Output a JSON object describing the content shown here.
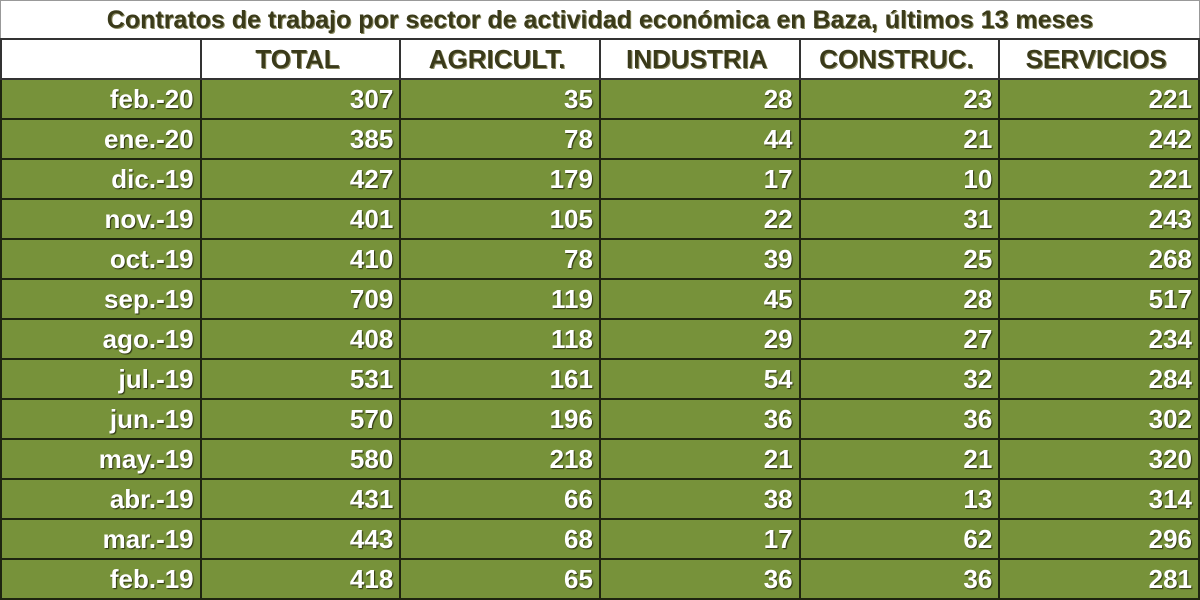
{
  "chart_data": {
    "type": "table",
    "title": "Contratos de trabajo por sector de actividad económica en Baza, últimos 13 meses",
    "columns": [
      "",
      "TOTAL",
      "AGRICULT.",
      "INDUSTRIA",
      "CONSTRUC.",
      "SERVICIOS"
    ],
    "rows": [
      {
        "label": "feb.-20",
        "values": [
          307,
          35,
          28,
          23,
          221
        ]
      },
      {
        "label": "ene.-20",
        "values": [
          385,
          78,
          44,
          21,
          242
        ]
      },
      {
        "label": "dic.-19",
        "values": [
          427,
          179,
          17,
          10,
          221
        ]
      },
      {
        "label": "nov.-19",
        "values": [
          401,
          105,
          22,
          31,
          243
        ]
      },
      {
        "label": "oct.-19",
        "values": [
          410,
          78,
          39,
          25,
          268
        ]
      },
      {
        "label": "sep.-19",
        "values": [
          709,
          119,
          45,
          28,
          517
        ]
      },
      {
        "label": "ago.-19",
        "values": [
          408,
          118,
          29,
          27,
          234
        ]
      },
      {
        "label": "jul.-19",
        "values": [
          531,
          161,
          54,
          32,
          284
        ]
      },
      {
        "label": "jun.-19",
        "values": [
          570,
          196,
          36,
          36,
          302
        ]
      },
      {
        "label": "may.-19",
        "values": [
          580,
          218,
          21,
          21,
          320
        ]
      },
      {
        "label": "abr.-19",
        "values": [
          431,
          66,
          38,
          13,
          314
        ]
      },
      {
        "label": "mar.-19",
        "values": [
          443,
          68,
          17,
          62,
          296
        ]
      },
      {
        "label": "feb.-19",
        "values": [
          418,
          65,
          36,
          36,
          281
        ]
      }
    ],
    "colors": {
      "cell_bg": "#77923a",
      "cell_text": "#ffffff",
      "header_text": "#3a3a1a"
    }
  }
}
